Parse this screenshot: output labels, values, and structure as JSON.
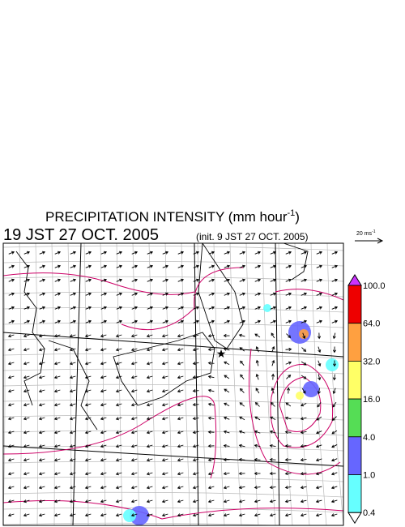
{
  "title": {
    "text": "PRECIPITATION INTENSITY (mm hour",
    "superscript": "-1",
    "closing": ")"
  },
  "valid_time": "19 JST 27 OCT. 2005",
  "init_time": "(init. 9 JST 27 OCT. 2005)",
  "wind_scale": {
    "text": "20 ms",
    "superscript": "-1"
  },
  "colorbar": {
    "labels": [
      "100.0",
      "64.0",
      "32.0",
      "16.0",
      "4.0",
      "1.0",
      "0.4"
    ],
    "over_color": "#cc33ff",
    "colors": [
      "#ee0000",
      "#ffa040",
      "#ffff66",
      "#55dd55",
      "#6666ff",
      "#66ffff"
    ],
    "under_color": "#ffffff"
  }
}
